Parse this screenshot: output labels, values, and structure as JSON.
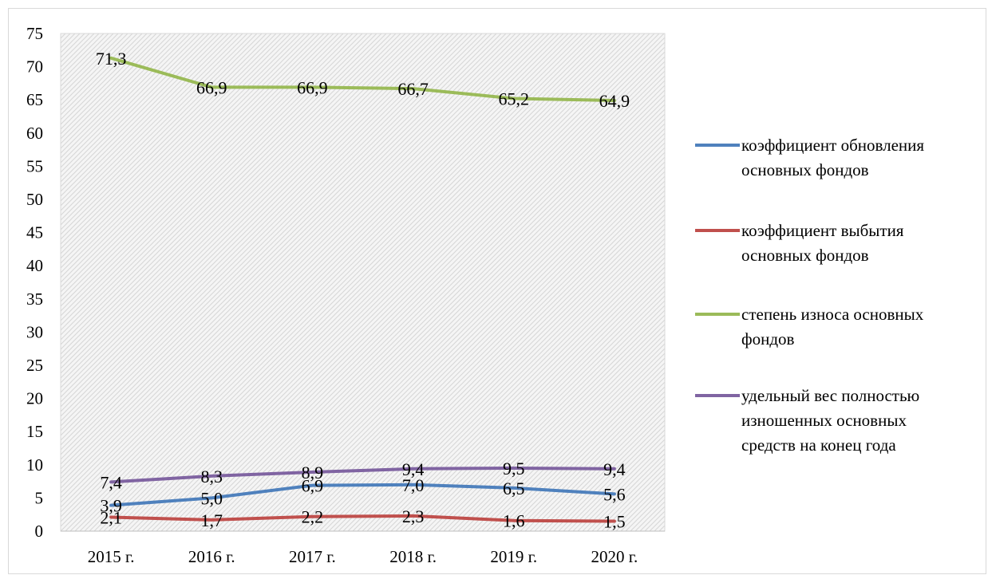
{
  "chart_data": {
    "type": "line",
    "title": "",
    "xlabel": "",
    "ylabel": "",
    "categories": [
      "2015 г.",
      "2016 г.",
      "2017 г.",
      "2018 г.",
      "2019 г.",
      "2020 г."
    ],
    "ylim": [
      0,
      75
    ],
    "yticks": [
      0,
      5,
      10,
      15,
      20,
      25,
      30,
      35,
      40,
      45,
      50,
      55,
      60,
      65,
      70,
      75
    ],
    "grid": false,
    "plot_background": "hatched light gray",
    "legend_position": "right",
    "series": [
      {
        "name": "коэффициент обновления основных фондов",
        "legend_lines": [
          "коэффициент обновления",
          "основных фондов"
        ],
        "color": "#4f81bd",
        "values": [
          3.9,
          5.0,
          6.9,
          7.0,
          6.5,
          5.6
        ],
        "labels": [
          "3,9",
          "5,0",
          "6,9",
          "7,0",
          "6,5",
          "5,6"
        ]
      },
      {
        "name": "коэффициент выбытия основных фондов",
        "legend_lines": [
          "коэффициент выбытия",
          "основных фондов"
        ],
        "color": "#c0504d",
        "values": [
          2.1,
          1.7,
          2.2,
          2.3,
          1.6,
          1.5
        ],
        "labels": [
          "2,1",
          "1,7",
          "2,2",
          "2,3",
          "1,6",
          "1,5"
        ]
      },
      {
        "name": "степень износа основных фондов",
        "legend_lines": [
          "степень износа основных",
          "фондов"
        ],
        "color": "#9bbb59",
        "values": [
          71.3,
          66.9,
          66.9,
          66.7,
          65.2,
          64.9
        ],
        "labels": [
          "71,3",
          "66,9",
          "66,9",
          "66,7",
          "65,2",
          "64,9"
        ]
      },
      {
        "name": "удельный вес полностью изношенных основных средств на конец года",
        "legend_lines": [
          "удельный вес полностью",
          "изношенных основных",
          "средств на конец года"
        ],
        "color": "#8064a2",
        "values": [
          7.4,
          8.3,
          8.9,
          9.4,
          9.5,
          9.4
        ],
        "labels": [
          "7,4",
          "8,3",
          "8,9",
          "9,4",
          "9,5",
          "9,4"
        ]
      }
    ]
  }
}
